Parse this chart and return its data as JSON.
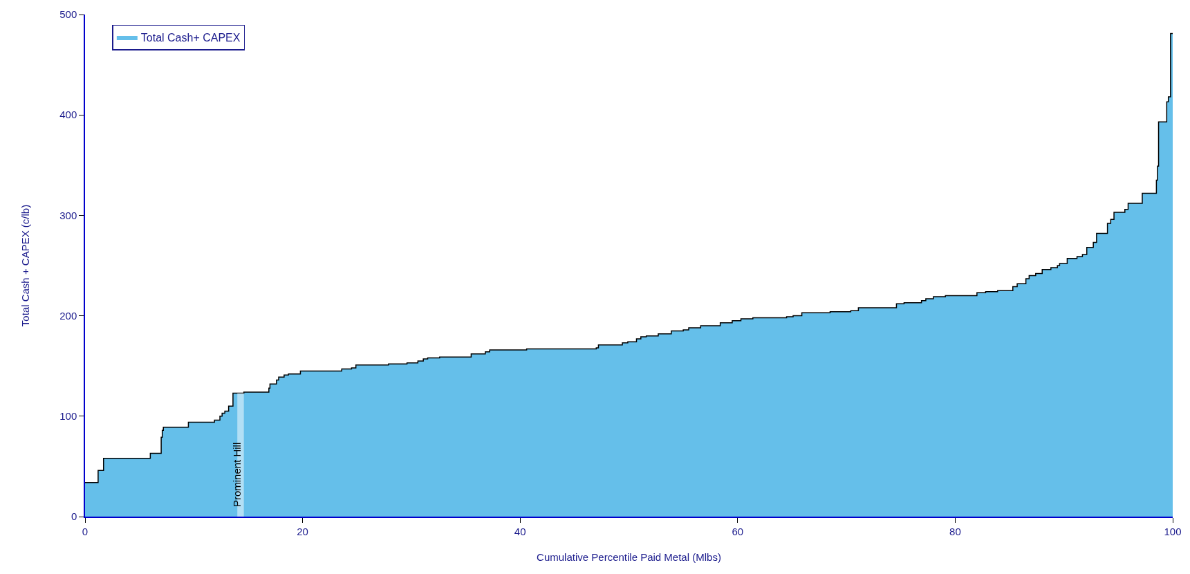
{
  "chart_data": {
    "type": "area",
    "xlabel": "Cumulative Percentile Paid Metal (Mlbs)",
    "ylabel": "Total Cash + CAPEX (c/lb)",
    "x": [
      0,
      1.2,
      1.7,
      6.0,
      7.0,
      7.1,
      7.2,
      9.5,
      11.9,
      12.4,
      12.6,
      12.85,
      13.2,
      13.6,
      14.6,
      16.9,
      17.0,
      17.6,
      17.8,
      18.3,
      18.7,
      19.8,
      21.5,
      23.6,
      24.5,
      24.9,
      27.9,
      29.6,
      30.6,
      31.1,
      31.5,
      32.6,
      35.5,
      36.8,
      37.2,
      40.6,
      47.0,
      47.2,
      49.4,
      49.9,
      50.7,
      51.1,
      51.6,
      52.7,
      53.9,
      55.0,
      55.5,
      56.6,
      58.4,
      59.5,
      60.3,
      61.4,
      64.5,
      65.1,
      65.9,
      68.5,
      70.4,
      71.1,
      74.6,
      75.3,
      76.9,
      77.3,
      78.0,
      79.1,
      82.0,
      82.8,
      83.9,
      85.3,
      85.7,
      86.5,
      86.8,
      87.4,
      88.0,
      88.8,
      89.4,
      89.6,
      90.3,
      91.2,
      91.7,
      92.1,
      92.7,
      93.0,
      94.0,
      94.3,
      94.6,
      95.6,
      95.9,
      97.2,
      98.5,
      98.6,
      98.7,
      99.45,
      99.6,
      99.8,
      100
    ],
    "series": [
      {
        "name": "Total Cash+ CAPEX",
        "color": "#65bfea",
        "values": [
          34,
          46,
          58,
          63,
          79,
          86,
          89,
          94,
          96,
          100,
          103,
          105,
          110,
          123,
          124,
          128,
          132,
          136,
          139,
          141,
          142,
          145,
          145,
          147,
          148,
          151,
          152,
          153,
          155,
          157,
          158,
          159,
          162,
          164,
          166,
          167,
          168,
          171,
          173,
          174,
          177,
          179,
          180,
          182,
          185,
          186,
          188,
          190,
          193,
          195,
          197,
          198,
          199,
          200,
          203,
          204,
          205,
          208,
          212,
          213,
          215,
          217,
          219,
          220,
          223,
          224,
          225,
          229,
          232,
          237,
          240,
          242,
          246,
          248,
          250,
          252,
          257,
          259,
          261,
          268,
          273,
          282,
          292,
          296,
          303,
          306,
          312,
          322,
          335,
          349,
          393,
          413,
          418,
          481,
          481
        ]
      },
      {
        "type": "step",
        "color": "#000000",
        "values": [
          34,
          46,
          58,
          63,
          79,
          86,
          89,
          94,
          96,
          100,
          103,
          105,
          110,
          123,
          124,
          128,
          132,
          136,
          139,
          141,
          142,
          145,
          145,
          147,
          148,
          151,
          152,
          153,
          155,
          157,
          158,
          159,
          162,
          164,
          166,
          167,
          168,
          171,
          173,
          174,
          177,
          179,
          180,
          182,
          185,
          186,
          188,
          190,
          193,
          195,
          197,
          198,
          199,
          200,
          203,
          204,
          205,
          208,
          212,
          213,
          215,
          217,
          219,
          220,
          223,
          224,
          225,
          229,
          232,
          237,
          240,
          242,
          246,
          248,
          250,
          252,
          257,
          259,
          261,
          268,
          273,
          282,
          292,
          296,
          303,
          306,
          312,
          322,
          335,
          349,
          393,
          413,
          418,
          481,
          481
        ]
      }
    ],
    "xlim": [
      0,
      100
    ],
    "xticks": [
      0,
      20,
      40,
      60,
      80,
      100
    ],
    "ylim": [
      0,
      500
    ],
    "yticks": [
      0,
      100,
      200,
      300,
      400,
      500
    ],
    "bands": [
      {
        "axis": "x",
        "from": 14.0,
        "to": 14.6,
        "label": "Prominent Hill"
      }
    ],
    "legend": "top left",
    "marker": "none",
    "line_style": "solid"
  }
}
